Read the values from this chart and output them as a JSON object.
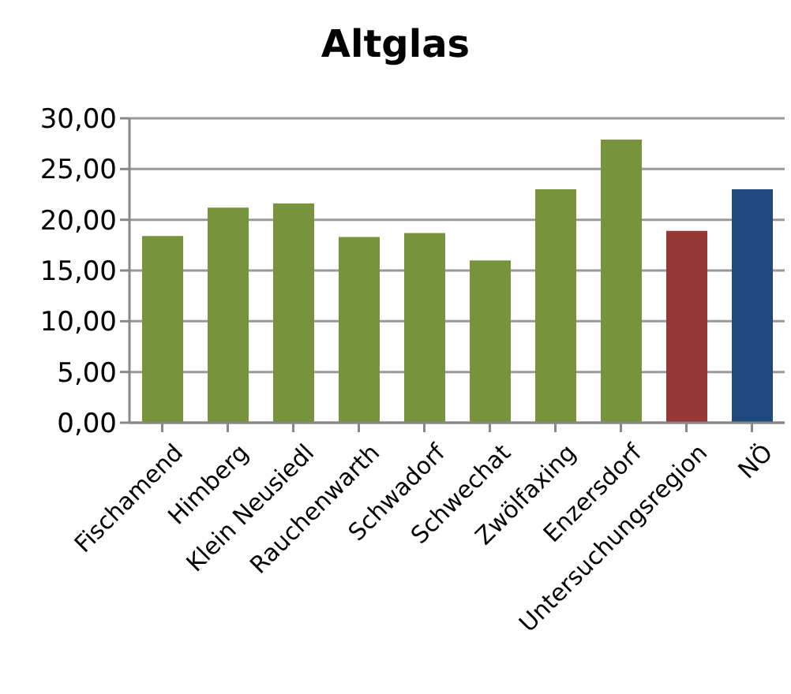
{
  "chart_data": {
    "type": "bar",
    "title": "Altglas",
    "categories": [
      "Fischamend",
      "Himberg",
      "Klein Neusiedl",
      "Rauchenwarth",
      "Schwadorf",
      "Schwechat",
      "Zwölfaxing",
      "Enzersdorf",
      "Untersuchungsregion",
      "NÖ"
    ],
    "values": [
      18.4,
      21.2,
      21.6,
      18.3,
      18.7,
      16.0,
      23.0,
      27.9,
      18.9,
      23.0
    ],
    "colors": [
      "#77933c",
      "#77933c",
      "#77933c",
      "#77933c",
      "#77933c",
      "#77933c",
      "#77933c",
      "#77933c",
      "#953735",
      "#1f497d"
    ],
    "ylim": [
      0,
      30
    ],
    "yticks": [
      {
        "value": 0,
        "label": "0,00"
      },
      {
        "value": 5,
        "label": "5,00"
      },
      {
        "value": 10,
        "label": "10,00"
      },
      {
        "value": 15,
        "label": "15,00"
      },
      {
        "value": 20,
        "label": "20,00"
      },
      {
        "value": 25,
        "label": "25,00"
      },
      {
        "value": 30,
        "label": "30,00"
      }
    ],
    "grid": "y",
    "legend": false
  }
}
